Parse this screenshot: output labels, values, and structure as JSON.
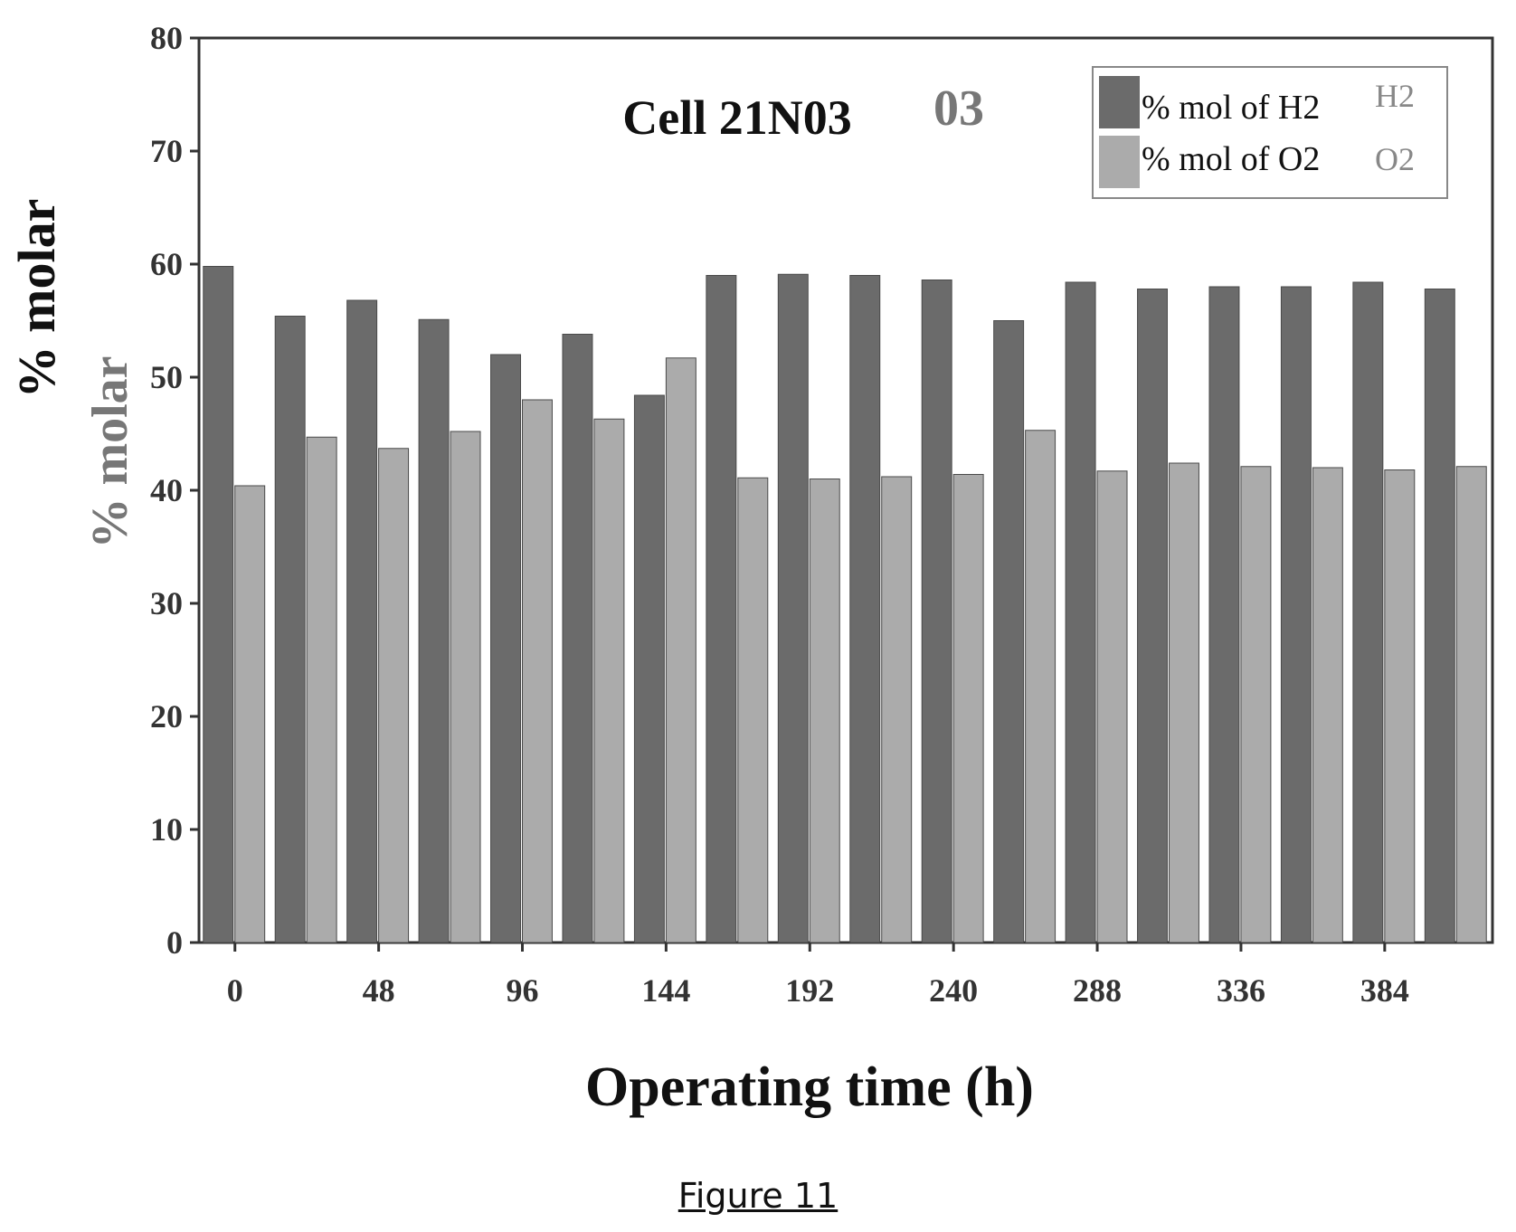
{
  "chart_data": {
    "type": "bar",
    "title": "Cell 21N03",
    "title_ghost": "03",
    "xlabel": "Operating time (h)",
    "ylabel": "% molar",
    "ylim": [
      0,
      80
    ],
    "yticks": [
      0,
      10,
      20,
      30,
      40,
      50,
      60,
      70,
      80
    ],
    "xtick_labels": [
      "0",
      "48",
      "96",
      "144",
      "192",
      "240",
      "288",
      "336",
      "384"
    ],
    "categories": [
      "0",
      "24",
      "48",
      "72",
      "96",
      "120",
      "144",
      "168",
      "192",
      "216",
      "240",
      "264",
      "288",
      "312",
      "336",
      "360",
      "384",
      "408"
    ],
    "series": [
      {
        "name": "% mol of H2",
        "ghost": "H2",
        "color": "#6b6b6b",
        "values": [
          59.8,
          55.4,
          56.8,
          55.1,
          52.0,
          53.8,
          48.4,
          59.0,
          59.1,
          59.0,
          58.6,
          55.0,
          58.4,
          57.8,
          58.0,
          58.0,
          58.4,
          57.8
        ]
      },
      {
        "name": "% mol of O2",
        "ghost": "O2",
        "color": "#ababab",
        "values": [
          40.4,
          44.7,
          43.7,
          45.2,
          48.0,
          46.3,
          51.7,
          41.1,
          41.0,
          41.2,
          41.4,
          45.3,
          41.7,
          42.4,
          42.1,
          42.0,
          41.8,
          42.1
        ]
      }
    ],
    "legend_position": "top-right",
    "grid": false
  },
  "caption": "Figure 11"
}
